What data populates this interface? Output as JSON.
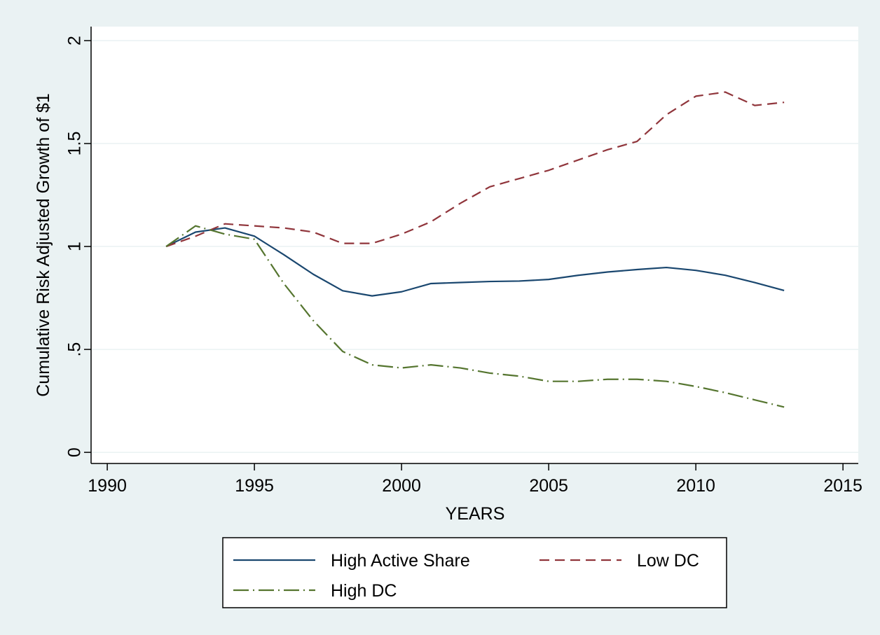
{
  "chart_data": {
    "type": "line",
    "y_label": "Cumulative Risk Adjusted Growth of $1",
    "x_label": "YEARS",
    "x": [
      1992,
      1993,
      1994,
      1995,
      1996,
      1997,
      1998,
      1999,
      2000,
      2001,
      2002,
      2003,
      2004,
      2005,
      2006,
      2007,
      2008,
      2009,
      2010,
      2011,
      2012,
      2013
    ],
    "series": [
      {
        "name": "High Active Share",
        "color": "#1a476f",
        "dash": "solid",
        "values": [
          1.0,
          1.07,
          1.09,
          1.05,
          0.96,
          0.865,
          0.785,
          0.76,
          0.78,
          0.82,
          0.825,
          0.83,
          0.832,
          0.84,
          0.86,
          0.876,
          0.888,
          0.898,
          0.884,
          0.86,
          0.825,
          0.786
        ]
      },
      {
        "name": "Low DC",
        "color": "#90353b",
        "dash": "dash",
        "values": [
          1.0,
          1.05,
          1.11,
          1.1,
          1.09,
          1.07,
          1.015,
          1.015,
          1.06,
          1.12,
          1.21,
          1.29,
          1.33,
          1.37,
          1.42,
          1.47,
          1.51,
          1.64,
          1.73,
          1.75,
          1.685,
          1.7
        ]
      },
      {
        "name": "High DC",
        "color": "#55752f",
        "dash": "dashdot",
        "values": [
          1.0,
          1.1,
          1.06,
          1.035,
          0.82,
          0.64,
          0.49,
          0.425,
          0.41,
          0.425,
          0.41,
          0.385,
          0.37,
          0.345,
          0.345,
          0.355,
          0.355,
          0.345,
          0.32,
          0.29,
          0.255,
          0.22
        ]
      }
    ],
    "xlim": [
      1989.45,
      2015.52
    ],
    "ylim": [
      -0.054,
      2.068
    ],
    "xticks": [
      1990,
      1995,
      2000,
      2005,
      2010,
      2015
    ],
    "yticks": [
      0,
      {
        "value": 0.5,
        "label": ".5"
      },
      1,
      1.5,
      2
    ],
    "grid": true
  }
}
